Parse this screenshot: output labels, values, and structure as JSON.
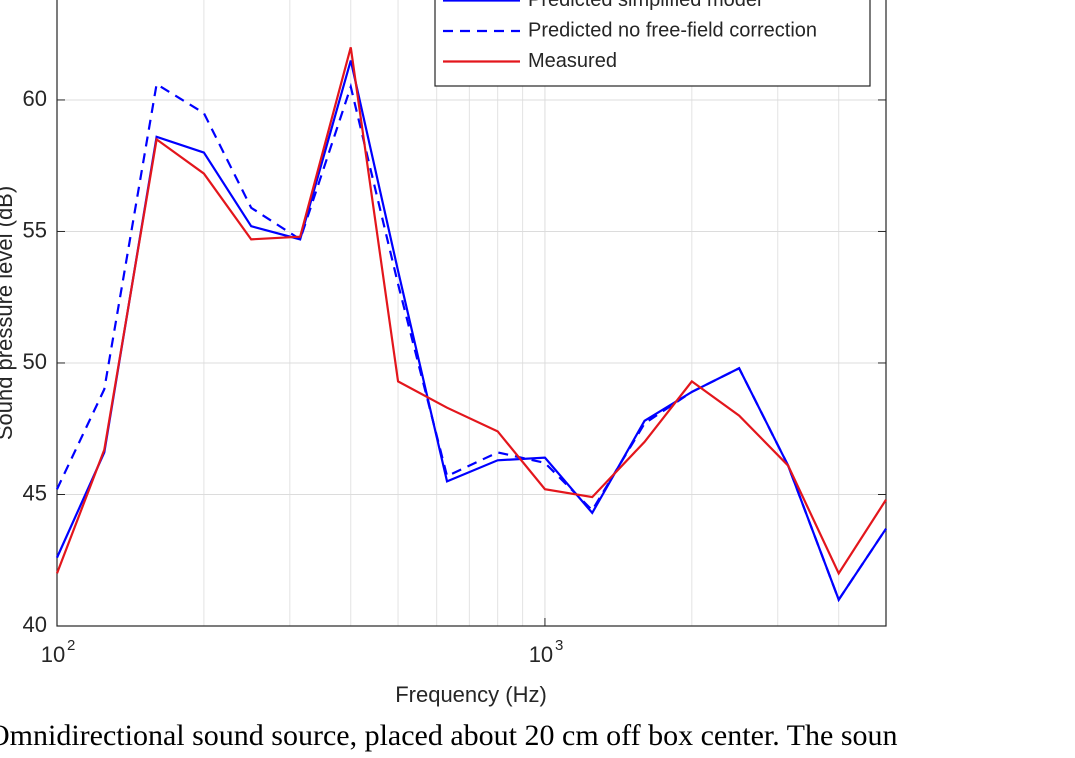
{
  "chart_data": {
    "type": "line",
    "xlabel": "Frequency (Hz)",
    "ylabel": "Sound pressure level (dB)",
    "caption": "Omnidirectional sound source, placed about 20 cm off box center. The soun",
    "x": [
      100,
      125,
      160,
      200,
      250,
      315,
      400,
      500,
      630,
      800,
      1000,
      1250,
      1600,
      2000,
      2500,
      3150,
      4000,
      5000
    ],
    "series": [
      {
        "name": "Predicted simplified model",
        "color": "#0000ff",
        "dashed": false,
        "values": [
          42.6,
          46.6,
          58.6,
          58.0,
          55.2,
          54.7,
          61.5,
          53.5,
          45.5,
          46.3,
          46.4,
          44.3,
          47.8,
          48.9,
          49.8,
          46.1,
          41.0,
          43.7
        ]
      },
      {
        "name": "Predicted no free-field correction",
        "color": "#0000ff",
        "dashed": true,
        "values": [
          45.2,
          49.0,
          60.6,
          59.5,
          55.9,
          54.7,
          60.5,
          53.0,
          45.7,
          46.6,
          46.2,
          44.4,
          47.7,
          48.9,
          49.8,
          46.1,
          41.0,
          43.7
        ]
      },
      {
        "name": "Measured",
        "color": "#e3161c",
        "dashed": false,
        "values": [
          42.0,
          46.7,
          58.5,
          57.2,
          54.7,
          54.8,
          62.0,
          49.3,
          48.3,
          47.4,
          45.2,
          44.9,
          47.0,
          49.3,
          48.0,
          46.1,
          42.0,
          44.8
        ]
      }
    ],
    "xscale": "log",
    "xlim": [
      100,
      5000
    ],
    "xticks": [
      {
        "value": 100,
        "label": "10"
      },
      {
        "value": 1000,
        "label": "10"
      }
    ],
    "xtick_exponents": [
      "2",
      "3"
    ],
    "xminorticks": [
      200,
      300,
      400,
      500,
      600,
      700,
      800,
      900,
      2000,
      3000,
      4000,
      5000
    ],
    "ylim": [
      40,
      63.8
    ],
    "yticks": [
      40,
      45,
      50,
      55,
      60
    ],
    "grid": true,
    "legend": "top-right"
  }
}
